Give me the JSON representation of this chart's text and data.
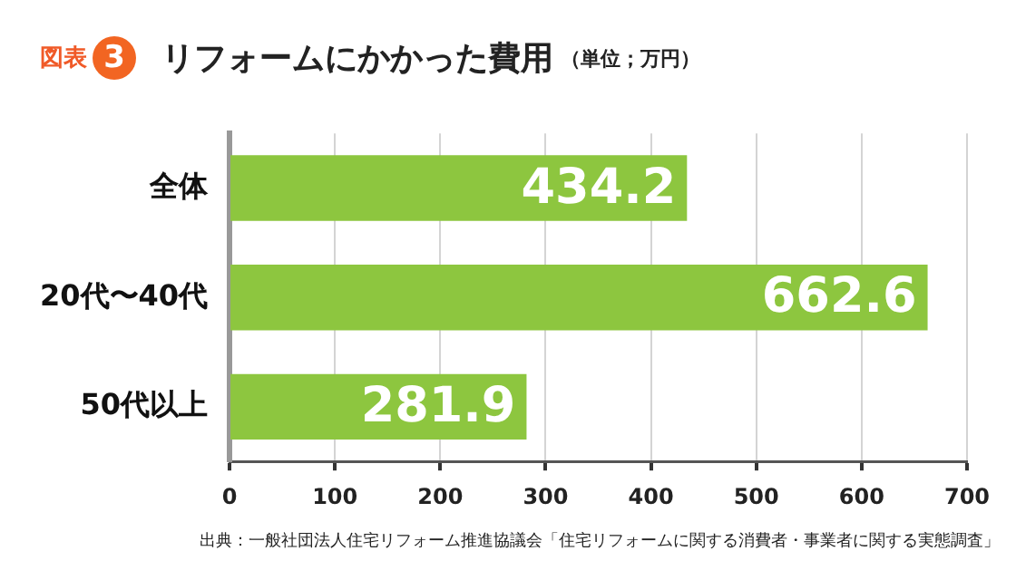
{
  "chart_data": {
    "type": "bar",
    "orientation": "horizontal",
    "title": "リフォームにかかった費用",
    "subtitle": "（単位；万円）",
    "categories": [
      "全体",
      "20代〜40代",
      "50代以上"
    ],
    "values": [
      434.2,
      662.6,
      281.9
    ],
    "color": "#8dc63f",
    "xlim": [
      0,
      700
    ],
    "xticks": [
      0,
      100,
      200,
      300,
      400,
      500,
      600,
      700
    ],
    "grid": "x",
    "data_labels": true,
    "legend": false,
    "annotations": [
      "図表",
      "3",
      "出典：一般社団法人住宅リフォーム推進協議会「住宅リフォームに関する消費者・事業者に関する実態調査」"
    ]
  }
}
